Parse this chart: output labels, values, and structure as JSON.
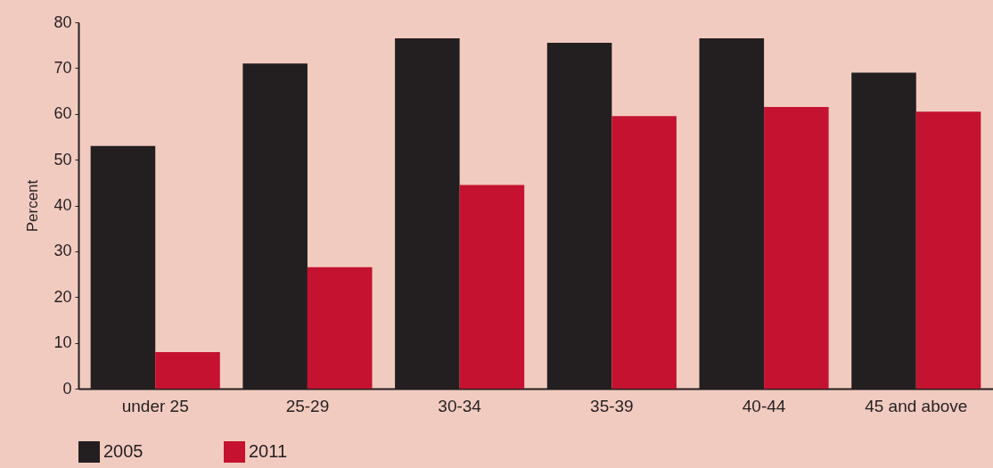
{
  "chart_data": {
    "type": "bar",
    "ylabel": "Percent",
    "categories": [
      "under 25",
      "25-29",
      "30-34",
      "35-39",
      "40-44",
      "45 and above"
    ],
    "series": [
      {
        "name": "2005",
        "color": "#231f20",
        "values": [
          53,
          71,
          76.5,
          75.5,
          76.5,
          69
        ]
      },
      {
        "name": "2011",
        "color": "#c41230",
        "values": [
          8,
          26.5,
          44.5,
          59.5,
          61.5,
          60.5
        ]
      }
    ],
    "ylim": [
      0,
      80
    ],
    "yticks": [
      0,
      10,
      20,
      30,
      40,
      50,
      60,
      70,
      80
    ],
    "grid": false,
    "legend": "bottom left"
  }
}
